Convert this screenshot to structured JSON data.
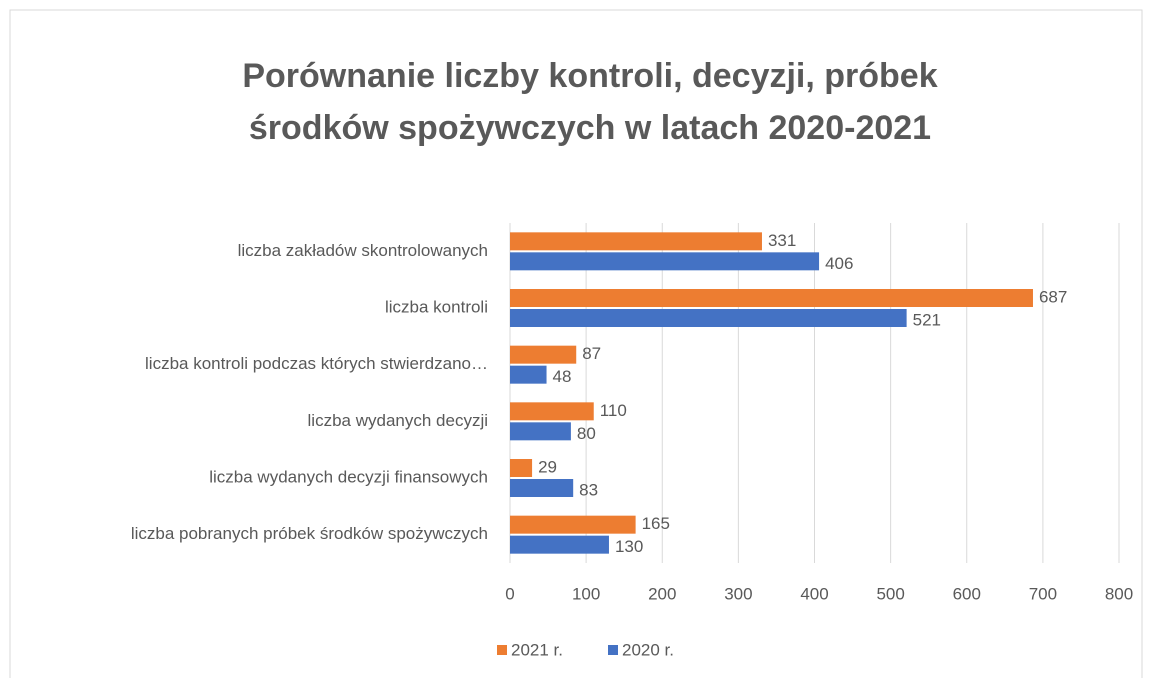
{
  "chart_data": {
    "type": "hbar",
    "title": [
      "Porównanie liczby kontroli, decyzji, próbek",
      "środków spożywczych w latach 2020-2021"
    ],
    "categories": [
      "liczba zakładów skontrolowanych",
      "liczba kontroli",
      "liczba kontroli podczas których stwierdzano…",
      "liczba wydanych decyzji",
      "liczba wydanych decyzji finansowych",
      "liczba pobranych próbek środków spożywczych"
    ],
    "series": [
      {
        "name": "2021 r.",
        "color": "#ed7d31",
        "values": [
          331,
          687,
          87,
          110,
          29,
          165
        ]
      },
      {
        "name": "2020 r.",
        "color": "#4472c4",
        "values": [
          406,
          521,
          48,
          80,
          83,
          130
        ]
      }
    ],
    "xlim": [
      0,
      800
    ],
    "xticks": [
      0,
      100,
      200,
      300,
      400,
      500,
      600,
      700,
      800
    ],
    "grid": true,
    "legend": "bottom"
  }
}
